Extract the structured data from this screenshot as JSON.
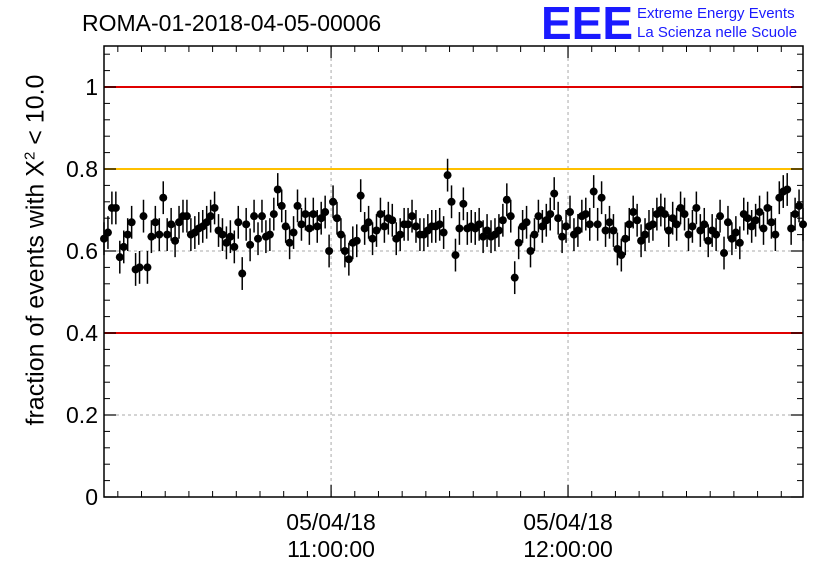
{
  "title": "ROMA-01-2018-04-05-00006",
  "logo": {
    "mark": "EEE",
    "line1": "Extreme Energy Events",
    "line2": "La Scienza nelle Scuole",
    "color": "#1a1aff"
  },
  "ylabel": {
    "prefix": "fraction of events with ",
    "symbol": "X",
    "exponent": "2",
    "suffix": " < 10.0"
  },
  "chart_data": {
    "type": "scatter",
    "title": "ROMA-01-2018-04-05-00006",
    "ylabel": "fraction of events with X² < 10.0",
    "ylim": [
      0,
      1.1
    ],
    "yticks": [
      {
        "value": 0,
        "label": "0"
      },
      {
        "value": 0.2,
        "label": "0.2"
      },
      {
        "value": 0.4,
        "label": "0.4"
      },
      {
        "value": 0.6,
        "label": "0.6"
      },
      {
        "value": 0.8,
        "label": "0.8"
      },
      {
        "value": 1,
        "label": "1"
      }
    ],
    "xlim": [
      "05/04/18 10:02:30",
      "05/04/18 12:59:30"
    ],
    "xticks": [
      {
        "time": "05/04/18 11:00:00",
        "date": "05/04/18",
        "clock": "11:00:00"
      },
      {
        "time": "05/04/18 12:00:00",
        "date": "05/04/18",
        "clock": "12:00:00"
      }
    ],
    "grid": true,
    "reference_lines": [
      {
        "y": 1.0,
        "color": "#e00000"
      },
      {
        "y": 0.8,
        "color": "#ffc000"
      },
      {
        "y": 0.4,
        "color": "#e00000"
      }
    ],
    "marker_color": "#000000",
    "error": 0.04,
    "x_start": "05/04/18 10:02:30",
    "x_step_min": 1,
    "y": [
      0.63,
      0.645,
      0.705,
      0.705,
      0.585,
      0.61,
      0.64,
      0.67,
      0.555,
      0.56,
      0.685,
      0.56,
      0.635,
      0.67,
      0.64,
      0.73,
      0.64,
      0.665,
      0.625,
      0.67,
      0.685,
      0.685,
      0.64,
      0.645,
      0.655,
      0.66,
      0.67,
      0.685,
      0.705,
      0.65,
      0.64,
      0.62,
      0.635,
      0.61,
      0.67,
      0.545,
      0.665,
      0.615,
      0.685,
      0.63,
      0.685,
      0.635,
      0.64,
      0.69,
      0.75,
      0.71,
      0.66,
      0.62,
      0.645,
      0.71,
      0.665,
      0.69,
      0.655,
      0.69,
      0.66,
      0.68,
      0.695,
      0.6,
      0.72,
      0.68,
      0.64,
      0.6,
      0.58,
      0.62,
      0.625,
      0.735,
      0.655,
      0.67,
      0.63,
      0.65,
      0.69,
      0.66,
      0.68,
      0.675,
      0.63,
      0.64,
      0.665,
      0.665,
      0.685,
      0.66,
      0.64,
      0.64,
      0.65,
      0.66,
      0.66,
      0.665,
      0.645,
      0.785,
      0.72,
      0.59,
      0.655,
      0.715,
      0.655,
      0.66,
      0.655,
      0.665,
      0.635,
      0.65,
      0.635,
      0.64,
      0.65,
      0.675,
      0.725,
      0.685,
      0.535,
      0.62,
      0.66,
      0.67,
      0.6,
      0.64,
      0.685,
      0.66,
      0.675,
      0.69,
      0.74,
      0.68,
      0.635,
      0.66,
      0.695,
      0.64,
      0.65,
      0.685,
      0.69,
      0.665,
      0.745,
      0.665,
      0.73,
      0.65,
      0.67,
      0.65,
      0.605,
      0.59,
      0.63,
      0.665,
      0.695,
      0.675,
      0.625,
      0.64,
      0.66,
      0.665,
      0.69,
      0.7,
      0.69,
      0.65,
      0.68,
      0.665,
      0.705,
      0.69,
      0.64,
      0.66,
      0.705,
      0.65,
      0.665,
      0.625,
      0.65,
      0.64,
      0.685,
      0.595,
      0.67,
      0.63,
      0.645,
      0.62,
      0.69,
      0.68,
      0.66,
      0.675,
      0.695,
      0.655,
      0.705,
      0.67,
      0.64,
      0.73,
      0.745,
      0.75,
      0.655,
      0.69,
      0.71,
      0.665,
      0.7,
      0.68,
      0.64,
      0.74,
      0.67,
      0.72
    ]
  }
}
